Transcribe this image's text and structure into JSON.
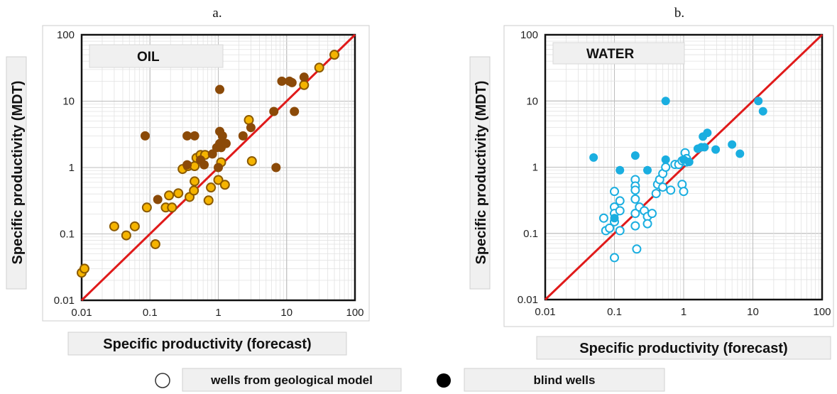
{
  "panels": [
    {
      "letter": "a.",
      "label": "OIL",
      "xlabel": "Specific productivity (forecast)",
      "ylabel": "Specific productivity (MDT)",
      "colors": {
        "fill": "#f5b400",
        "stroke": "#8b5a00",
        "blind": "#8b4a08"
      }
    },
    {
      "letter": "b.",
      "label": "WATER",
      "xlabel": "Specific productivity (forecast)",
      "ylabel": "Specific productivity (MDT)",
      "colors": {
        "fill": "#ffffff",
        "stroke": "#1aaee0",
        "blind": "#1aaee0"
      }
    }
  ],
  "legend": {
    "open_label": "wells from geological model",
    "filled_label": "blind wells"
  },
  "line_color": "#e01a1a",
  "chart_data": [
    {
      "type": "scatter",
      "title": "OIL",
      "xlabel": "Specific productivity (forecast)",
      "ylabel": "Specific productivity (MDT)",
      "xscale": "log",
      "yscale": "log",
      "xlim": [
        0.01,
        100
      ],
      "ylim": [
        0.01,
        100
      ],
      "xticks": [
        "0.01",
        "0.1",
        "1",
        "10",
        "100"
      ],
      "yticks": [
        "0.01",
        "0.1",
        "1",
        "10",
        "100"
      ],
      "grid": true,
      "reference_line": "y = x",
      "series": [
        {
          "name": "wells from geological model",
          "points": [
            [
              0.01,
              0.026
            ],
            [
              0.011,
              0.03
            ],
            [
              0.03,
              0.13
            ],
            [
              0.045,
              0.095
            ],
            [
              0.06,
              0.13
            ],
            [
              0.09,
              0.25
            ],
            [
              0.12,
              0.07
            ],
            [
              0.17,
              0.25
            ],
            [
              0.19,
              0.38
            ],
            [
              0.21,
              0.25
            ],
            [
              0.26,
              0.41
            ],
            [
              0.3,
              0.95
            ],
            [
              0.36,
              1.05
            ],
            [
              0.38,
              0.36
            ],
            [
              0.44,
              0.45
            ],
            [
              0.45,
              0.62
            ],
            [
              0.45,
              1.05
            ],
            [
              0.48,
              1.4
            ],
            [
              0.55,
              1.55
            ],
            [
              0.64,
              1.55
            ],
            [
              0.72,
              0.32
            ],
            [
              0.78,
              0.5
            ],
            [
              1.0,
              0.65
            ],
            [
              1.1,
              1.2
            ],
            [
              1.25,
              0.55
            ],
            [
              2.8,
              5.2
            ],
            [
              3.1,
              1.25
            ],
            [
              18.0,
              17.5
            ],
            [
              30.0,
              32.0
            ],
            [
              50.0,
              50.0
            ]
          ]
        },
        {
          "name": "blind wells",
          "points": [
            [
              0.085,
              3.0
            ],
            [
              0.13,
              0.33
            ],
            [
              0.35,
              3.0
            ],
            [
              0.45,
              3.0
            ],
            [
              0.35,
              1.1
            ],
            [
              0.55,
              1.3
            ],
            [
              0.62,
              1.1
            ],
            [
              0.82,
              1.6
            ],
            [
              0.95,
              2.0
            ],
            [
              1.05,
              2.3
            ],
            [
              1.05,
              15.0
            ],
            [
              1.05,
              3.5
            ],
            [
              1.1,
              2.0
            ],
            [
              1.15,
              3.0
            ],
            [
              1.3,
              2.3
            ],
            [
              1.0,
              1.0
            ],
            [
              2.3,
              3.0
            ],
            [
              3.0,
              4.0
            ],
            [
              6.5,
              7.0
            ],
            [
              7.0,
              1.0
            ],
            [
              8.5,
              20.0
            ],
            [
              11.0,
              20.0
            ],
            [
              12.0,
              19.0
            ],
            [
              13.0,
              7.0
            ],
            [
              18.0,
              23.0
            ]
          ]
        }
      ]
    },
    {
      "type": "scatter",
      "title": "WATER",
      "xlabel": "Specific productivity (forecast)",
      "ylabel": "Specific productivity (MDT)",
      "xscale": "log",
      "yscale": "log",
      "xlim": [
        0.01,
        100
      ],
      "ylim": [
        0.01,
        100
      ],
      "xticks": [
        "0.01",
        "0.1",
        "1",
        "10",
        "100"
      ],
      "yticks": [
        "0.01",
        "0.1",
        "1",
        "10",
        "100"
      ],
      "grid": true,
      "reference_line": "y = x",
      "series": [
        {
          "name": "wells from geological model",
          "points": [
            [
              0.07,
              0.17
            ],
            [
              0.075,
              0.11
            ],
            [
              0.085,
              0.12
            ],
            [
              0.1,
              0.43
            ],
            [
              0.1,
              0.25
            ],
            [
              0.1,
              0.2
            ],
            [
              0.1,
              0.15
            ],
            [
              0.1,
              0.043
            ],
            [
              0.12,
              0.31
            ],
            [
              0.12,
              0.22
            ],
            [
              0.12,
              0.11
            ],
            [
              0.2,
              0.65
            ],
            [
              0.2,
              0.52
            ],
            [
              0.2,
              0.45
            ],
            [
              0.2,
              0.33
            ],
            [
              0.2,
              0.2
            ],
            [
              0.2,
              0.13
            ],
            [
              0.21,
              0.058
            ],
            [
              0.23,
              0.25
            ],
            [
              0.27,
              0.22
            ],
            [
              0.3,
              0.18
            ],
            [
              0.3,
              0.14
            ],
            [
              0.35,
              0.2
            ],
            [
              0.4,
              0.4
            ],
            [
              0.42,
              0.55
            ],
            [
              0.45,
              0.65
            ],
            [
              0.5,
              0.8
            ],
            [
              0.5,
              0.5
            ],
            [
              0.55,
              1.0
            ],
            [
              0.65,
              0.45
            ],
            [
              0.75,
              1.1
            ],
            [
              0.85,
              1.1
            ],
            [
              0.95,
              1.25
            ],
            [
              0.95,
              0.55
            ],
            [
              1.0,
              0.43
            ],
            [
              1.05,
              1.65
            ],
            [
              1.1,
              1.35
            ],
            [
              1.1,
              1.2
            ]
          ]
        },
        {
          "name": "blind wells",
          "points": [
            [
              0.05,
              1.4
            ],
            [
              0.12,
              0.9
            ],
            [
              0.1,
              0.17
            ],
            [
              0.2,
              1.5
            ],
            [
              0.3,
              0.9
            ],
            [
              0.55,
              10.0
            ],
            [
              0.55,
              1.3
            ],
            [
              1.0,
              1.3
            ],
            [
              1.2,
              1.2
            ],
            [
              1.6,
              1.9
            ],
            [
              1.8,
              2.0
            ],
            [
              1.9,
              2.9
            ],
            [
              2.0,
              2.0
            ],
            [
              2.2,
              3.3
            ],
            [
              2.9,
              1.85
            ],
            [
              5.0,
              2.2
            ],
            [
              6.5,
              1.6
            ],
            [
              12.0,
              10.0
            ],
            [
              14.0,
              7.0
            ]
          ]
        }
      ]
    }
  ]
}
